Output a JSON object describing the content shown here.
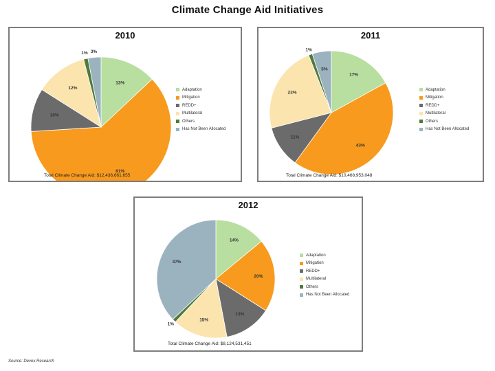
{
  "title": "Climate Change Aid Initiatives",
  "source": "Source: Devex Research",
  "colors": {
    "Adaptation": "#b8dea0",
    "Mitigation": "#f79a1d",
    "REDD+": "#6b6b6b",
    "Multilateral": "#fbe4ae",
    "Others": "#4f7a3a",
    "Has Not Been Allocated": "#9bb3bf"
  },
  "chart_data": [
    {
      "type": "pie",
      "title": "2010",
      "categories": [
        "Adaptation",
        "Mitigation",
        "REDD+",
        "Multilateral",
        "Others",
        "Has Not Been Allocated"
      ],
      "values": [
        13,
        61,
        10,
        12,
        1,
        3
      ],
      "value_labels": [
        "13%",
        "61%",
        "10%",
        "12%",
        "1%",
        "3%"
      ],
      "legend": [
        "Adaptation",
        "Mitigation",
        "REDD+",
        "Multilateral",
        "Others",
        "Has Not Been Allocated"
      ],
      "legend_position": "right",
      "total": "Total Climate Change Aid: $12,436,661,655"
    },
    {
      "type": "pie",
      "title": "2011",
      "categories": [
        "Adaptation",
        "Mitigation",
        "REDD+",
        "Multilateral",
        "Others",
        "Has Not Been Allocated"
      ],
      "values": [
        17,
        43,
        11,
        23,
        1,
        5
      ],
      "value_labels": [
        "17%",
        "43%",
        "11%",
        "23%",
        "1%",
        "5%"
      ],
      "legend": [
        "Adaptation",
        "Mitigation",
        "REDD+",
        "Multilateral",
        "Others",
        "Has Not Been Allocated"
      ],
      "legend_position": "right",
      "total": "Total Climate Change Aid: $10,468,953,048"
    },
    {
      "type": "pie",
      "title": "2012",
      "categories": [
        "Adaptation",
        "Mitigation",
        "REDD+",
        "Multilateral",
        "Others",
        "Has Not Been Allocated"
      ],
      "values": [
        14,
        20,
        13,
        15,
        1,
        37
      ],
      "value_labels": [
        "14%",
        "20%",
        "13%",
        "15%",
        "1%",
        "37%"
      ],
      "legend": [
        "Adaptation",
        "Mitigation",
        "REDD+",
        "Multilateral",
        "Others",
        "Has Not Been Allocated"
      ],
      "legend_position": "right",
      "total": "Total Climate Change Aid: $8,124,531,451"
    }
  ]
}
